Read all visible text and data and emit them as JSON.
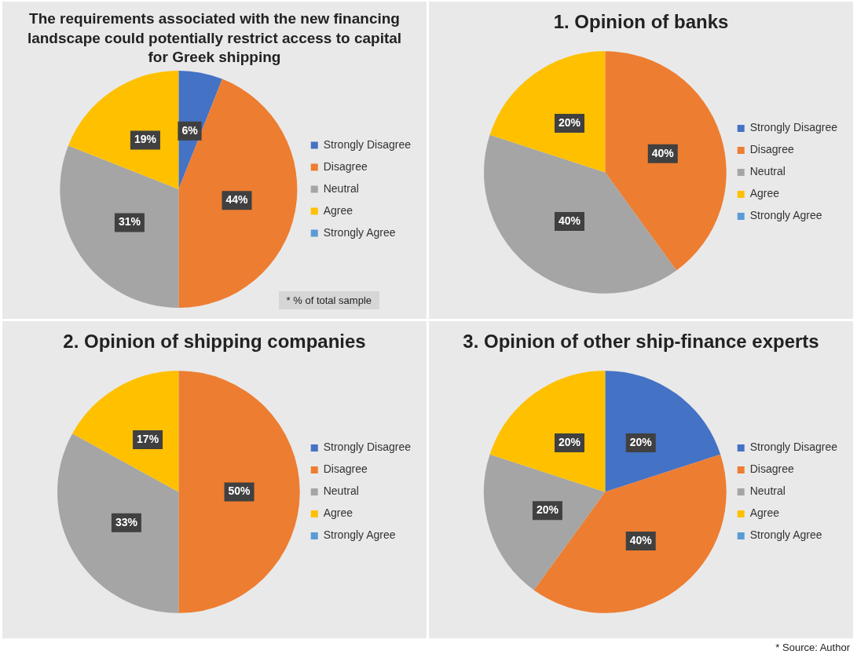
{
  "chart_data": [
    {
      "type": "pie",
      "title": "The requirements associated with the new financing landscape could potentially restrict access to capital for Greek shipping",
      "categories": [
        "Strongly Disagree",
        "Disagree",
        "Neutral",
        "Agree",
        "Strongly Agree"
      ],
      "values": [
        6,
        44,
        31,
        19,
        0
      ],
      "colors": [
        "#4472c4",
        "#ed7d31",
        "#a5a5a5",
        "#ffc000",
        "#5b9bd5"
      ],
      "value_labels": [
        "6%",
        "44%",
        "31%",
        "19%",
        null
      ],
      "legend": "right",
      "annotations": [
        "* % of total sample"
      ]
    },
    {
      "type": "pie",
      "title": "1. Opinion of banks",
      "categories": [
        "Strongly Disagree",
        "Disagree",
        "Neutral",
        "Agree",
        "Strongly Agree"
      ],
      "values": [
        0,
        40,
        40,
        20,
        0
      ],
      "colors": [
        "#4472c4",
        "#ed7d31",
        "#a5a5a5",
        "#ffc000",
        "#5b9bd5"
      ],
      "value_labels": [
        null,
        "40%",
        "40%",
        "20%",
        null
      ],
      "legend": "right"
    },
    {
      "type": "pie",
      "title": "2. Opinion of shipping companies",
      "categories": [
        "Strongly Disagree",
        "Disagree",
        "Neutral",
        "Agree",
        "Strongly Agree"
      ],
      "values": [
        0,
        50,
        33,
        17,
        0
      ],
      "colors": [
        "#4472c4",
        "#ed7d31",
        "#a5a5a5",
        "#ffc000",
        "#5b9bd5"
      ],
      "value_labels": [
        null,
        "50%",
        "33%",
        "17%",
        null
      ],
      "legend": "right"
    },
    {
      "type": "pie",
      "title": "3. Opinion of other ship-finance experts",
      "categories": [
        "Strongly Disagree",
        "Disagree",
        "Neutral",
        "Agree",
        "Strongly Agree"
      ],
      "values": [
        20,
        40,
        20,
        20,
        0
      ],
      "colors": [
        "#4472c4",
        "#ed7d31",
        "#a5a5a5",
        "#ffc000",
        "#5b9bd5"
      ],
      "value_labels": [
        "20%",
        "40%",
        "20%",
        "20%",
        null
      ],
      "legend": "right",
      "annotations": [
        "* Source: Author"
      ]
    }
  ]
}
